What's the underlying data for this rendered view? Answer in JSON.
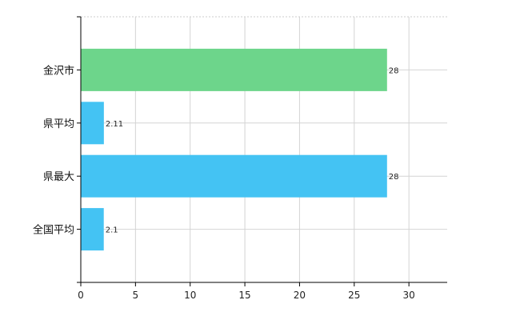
{
  "chart_data": {
    "type": "bar",
    "orientation": "horizontal",
    "categories": [
      "金沢市",
      "県平均",
      "県最大",
      "全国平均"
    ],
    "values": [
      28,
      2.11,
      28,
      2.1
    ],
    "data_labels": [
      "28",
      "2.11",
      "28",
      "2.1"
    ],
    "bar_colors": [
      "#6dd58b",
      "#44c3f3",
      "#44c3f3",
      "#44c3f3"
    ],
    "x_ticks": [
      "0",
      "5",
      "10",
      "15",
      "20",
      "25",
      "30"
    ],
    "xlim": [
      0,
      33.5
    ],
    "grid": true,
    "title": "",
    "xlabel": "",
    "ylabel": ""
  }
}
